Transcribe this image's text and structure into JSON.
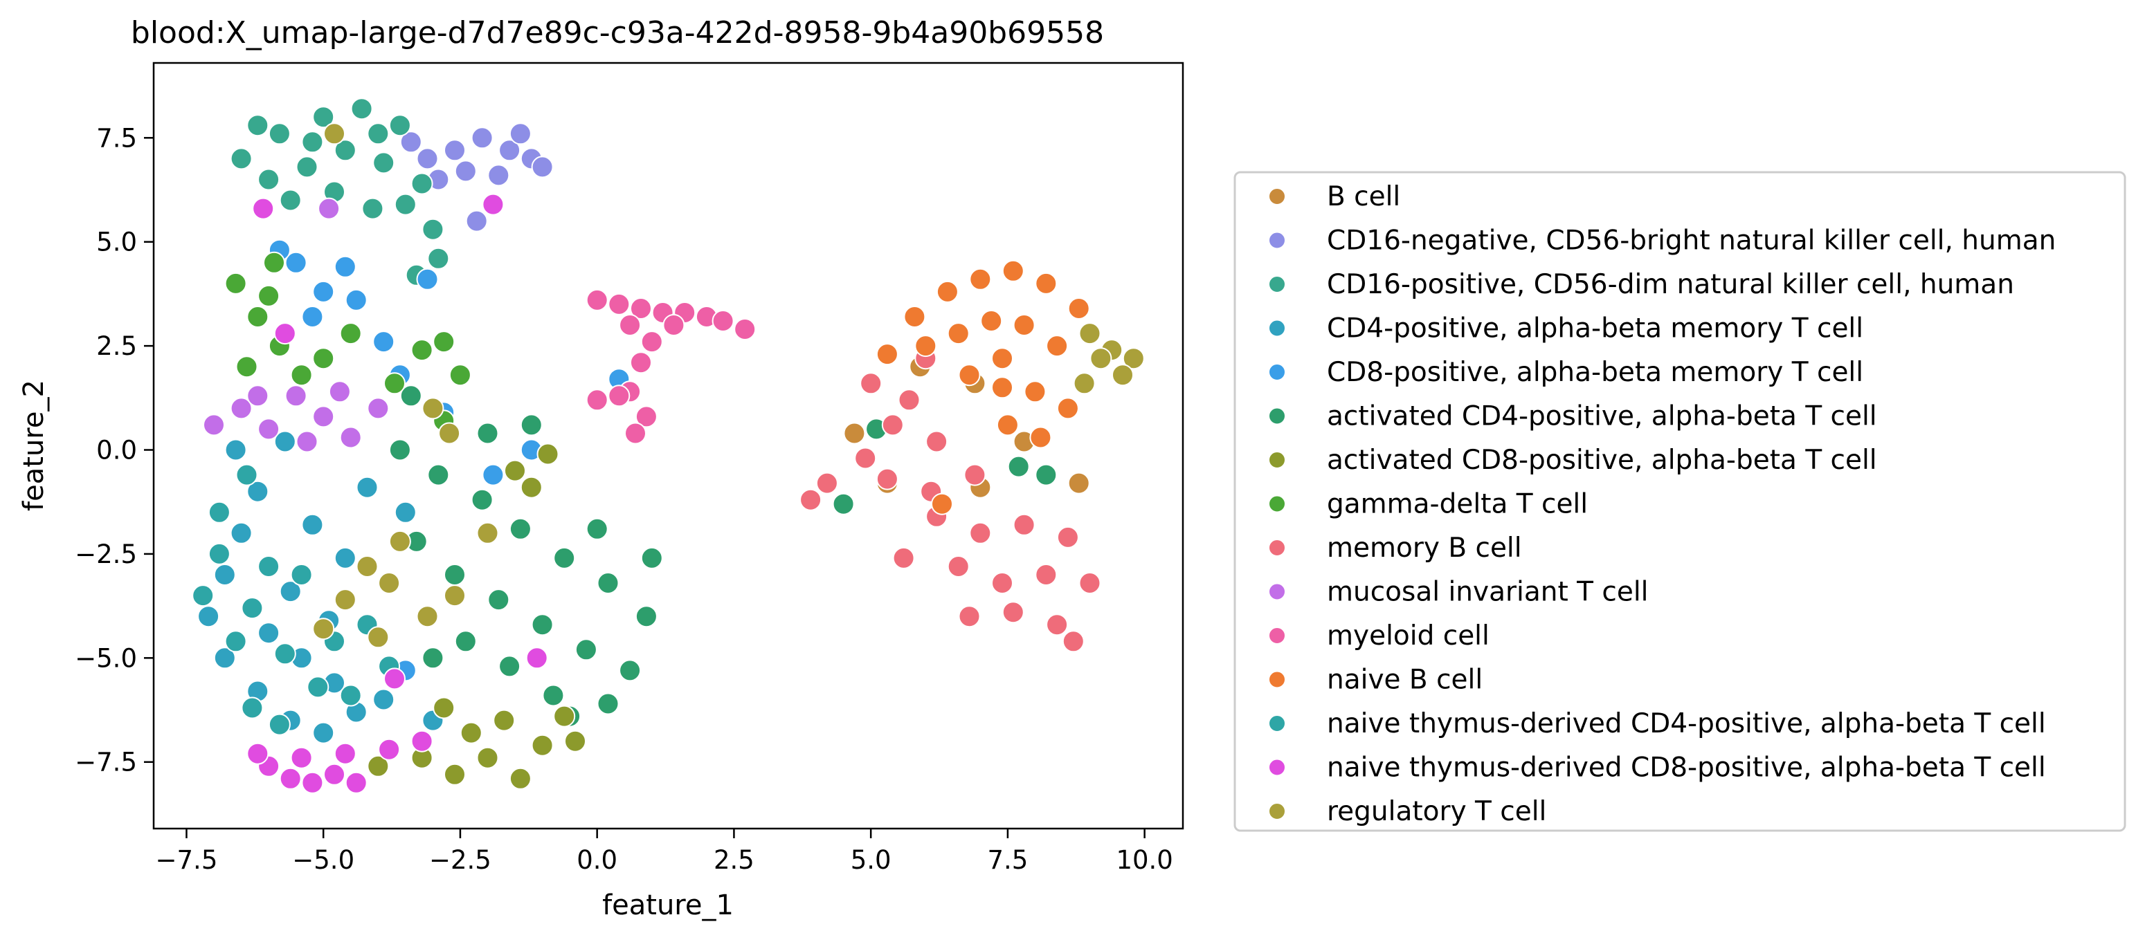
{
  "chart_data": {
    "type": "scatter",
    "title": "blood:X_umap-large-d7d7e89c-c93a-422d-8958-9b4a90b69558",
    "xlabel": "feature_1",
    "ylabel": "feature_2",
    "xlim": [
      -8.1,
      10.7
    ],
    "ylim": [
      -9.1,
      9.3
    ],
    "x_ticks": [
      -7.5,
      -5.0,
      -2.5,
      0.0,
      2.5,
      5.0,
      7.5,
      10.0
    ],
    "x_tick_labels": [
      "−7.5",
      "−5.0",
      "−2.5",
      "0.0",
      "2.5",
      "5.0",
      "7.5",
      "10.0"
    ],
    "y_ticks": [
      -7.5,
      -5.0,
      -2.5,
      0.0,
      2.5,
      5.0,
      7.5
    ],
    "y_tick_labels": [
      "−7.5",
      "−5.0",
      "−2.5",
      "0.0",
      "2.5",
      "5.0",
      "7.5"
    ],
    "grid": false,
    "legend_position": "outside-right",
    "series": [
      {
        "name": "B cell",
        "color": "#c98b3b",
        "points": [
          [
            4.7,
            0.4
          ],
          [
            5.3,
            -0.8
          ],
          [
            7.0,
            -0.9
          ],
          [
            7.8,
            0.2
          ],
          [
            8.8,
            -0.8
          ],
          [
            6.9,
            1.6
          ],
          [
            5.9,
            2.0
          ]
        ]
      },
      {
        "name": "CD16-negative, CD56-bright natural killer cell, human",
        "color": "#8d8ee6",
        "points": [
          [
            -3.1,
            7.0
          ],
          [
            -2.6,
            7.2
          ],
          [
            -2.1,
            7.5
          ],
          [
            -1.6,
            7.2
          ],
          [
            -1.2,
            7.0
          ],
          [
            -2.4,
            6.7
          ],
          [
            -1.8,
            6.6
          ],
          [
            -1.4,
            7.6
          ],
          [
            -2.9,
            6.5
          ],
          [
            -2.2,
            5.5
          ],
          [
            -3.4,
            7.4
          ],
          [
            -1.0,
            6.8
          ]
        ]
      },
      {
        "name": "CD16-positive, CD56-dim natural killer cell, human",
        "color": "#38a88e",
        "points": [
          [
            -6.5,
            7.0
          ],
          [
            -5.8,
            7.6
          ],
          [
            -5.0,
            8.0
          ],
          [
            -4.3,
            8.2
          ],
          [
            -3.6,
            7.8
          ],
          [
            -6.0,
            6.5
          ],
          [
            -5.3,
            6.8
          ],
          [
            -4.6,
            7.2
          ],
          [
            -3.9,
            6.9
          ],
          [
            -3.2,
            6.4
          ],
          [
            -5.6,
            6.0
          ],
          [
            -4.8,
            6.2
          ],
          [
            -4.1,
            5.8
          ],
          [
            -3.5,
            5.9
          ],
          [
            -3.0,
            5.3
          ],
          [
            -2.9,
            4.6
          ],
          [
            -3.3,
            4.2
          ],
          [
            -6.2,
            7.8
          ],
          [
            -4.0,
            7.6
          ],
          [
            -5.2,
            7.4
          ]
        ]
      },
      {
        "name": "CD4-positive, alpha-beta memory T cell",
        "color": "#30a2c0",
        "points": [
          [
            -7.1,
            -4.0
          ],
          [
            -6.8,
            -3.0
          ],
          [
            -6.5,
            -2.0
          ],
          [
            -6.2,
            -1.0
          ],
          [
            -6.8,
            -5.0
          ],
          [
            -6.2,
            -5.8
          ],
          [
            -5.6,
            -6.5
          ],
          [
            -5.0,
            -6.8
          ],
          [
            -4.4,
            -6.3
          ],
          [
            -5.6,
            -3.4
          ],
          [
            -5.2,
            -1.8
          ],
          [
            -4.6,
            -2.6
          ],
          [
            -6.0,
            -4.4
          ],
          [
            -5.4,
            -5.0
          ],
          [
            -4.8,
            -5.6
          ],
          [
            -3.9,
            -6.0
          ],
          [
            -6.6,
            0.0
          ],
          [
            -5.7,
            0.2
          ],
          [
            -4.2,
            -0.9
          ],
          [
            -3.5,
            -1.5
          ],
          [
            -3.0,
            -6.5
          ],
          [
            -4.9,
            -4.1
          ]
        ]
      },
      {
        "name": "CD8-positive, alpha-beta memory T cell",
        "color": "#3a9ee8",
        "points": [
          [
            -5.5,
            4.5
          ],
          [
            -5.0,
            3.8
          ],
          [
            -4.6,
            4.4
          ],
          [
            -5.2,
            3.2
          ],
          [
            -4.4,
            3.6
          ],
          [
            -3.9,
            2.6
          ],
          [
            -3.6,
            1.8
          ],
          [
            -5.8,
            4.8
          ],
          [
            -3.1,
            4.1
          ],
          [
            -1.2,
            0.0
          ],
          [
            -1.9,
            -0.6
          ],
          [
            0.4,
            1.7
          ],
          [
            -3.5,
            -5.3
          ],
          [
            -2.8,
            0.9
          ]
        ]
      },
      {
        "name": "activated CD4-positive, alpha-beta T cell",
        "color": "#2d9e6c",
        "points": [
          [
            -3.6,
            0.0
          ],
          [
            -2.9,
            -0.6
          ],
          [
            -2.1,
            -1.2
          ],
          [
            -1.4,
            -1.9
          ],
          [
            -0.6,
            -2.6
          ],
          [
            0.2,
            -3.2
          ],
          [
            0.9,
            -4.0
          ],
          [
            -3.3,
            -2.2
          ],
          [
            -2.6,
            -3.0
          ],
          [
            -1.8,
            -3.6
          ],
          [
            -1.0,
            -4.2
          ],
          [
            -0.2,
            -4.8
          ],
          [
            0.6,
            -5.3
          ],
          [
            -2.4,
            -4.6
          ],
          [
            -1.6,
            -5.2
          ],
          [
            -0.8,
            -5.9
          ],
          [
            -3.0,
            -5.0
          ],
          [
            -1.2,
            0.6
          ],
          [
            -2.0,
            0.4
          ],
          [
            0.0,
            -1.9
          ],
          [
            -3.4,
            1.3
          ],
          [
            -0.5,
            -6.4
          ],
          [
            0.2,
            -6.1
          ],
          [
            1.0,
            -2.6
          ],
          [
            5.1,
            0.5
          ],
          [
            4.5,
            -1.3
          ],
          [
            7.7,
            -0.4
          ],
          [
            8.2,
            -0.6
          ]
        ]
      },
      {
        "name": "activated CD8-positive, alpha-beta T cell",
        "color": "#8c9a2c",
        "points": [
          [
            -2.6,
            -7.8
          ],
          [
            -2.0,
            -7.4
          ],
          [
            -1.4,
            -7.9
          ],
          [
            -2.3,
            -6.8
          ],
          [
            -1.7,
            -6.5
          ],
          [
            -1.0,
            -7.1
          ],
          [
            -0.6,
            -6.4
          ],
          [
            -2.8,
            -6.2
          ],
          [
            -3.2,
            -7.4
          ],
          [
            -1.2,
            -0.9
          ],
          [
            -0.9,
            -0.1
          ],
          [
            -1.5,
            -0.5
          ],
          [
            -0.4,
            -7.0
          ],
          [
            -4.0,
            -7.6
          ]
        ]
      },
      {
        "name": "gamma-delta T cell",
        "color": "#4aa836",
        "points": [
          [
            -6.6,
            4.0
          ],
          [
            -6.2,
            3.2
          ],
          [
            -5.8,
            2.5
          ],
          [
            -6.4,
            2.0
          ],
          [
            -5.4,
            1.8
          ],
          [
            -6.0,
            3.7
          ],
          [
            -5.0,
            2.2
          ],
          [
            -4.5,
            2.8
          ],
          [
            -3.7,
            1.6
          ],
          [
            -3.2,
            2.4
          ],
          [
            -2.8,
            2.6
          ],
          [
            -2.5,
            1.8
          ],
          [
            -2.8,
            0.7
          ],
          [
            -5.9,
            4.5
          ]
        ]
      },
      {
        "name": "memory B cell",
        "color": "#ef6c7a",
        "points": [
          [
            4.2,
            -0.8
          ],
          [
            4.9,
            -0.2
          ],
          [
            5.4,
            0.6
          ],
          [
            5.0,
            1.6
          ],
          [
            5.7,
            1.2
          ],
          [
            6.2,
            0.2
          ],
          [
            6.9,
            -0.6
          ],
          [
            6.1,
            -1.0
          ],
          [
            5.3,
            -0.7
          ],
          [
            6.2,
            -1.6
          ],
          [
            7.0,
            -2.0
          ],
          [
            7.8,
            -1.8
          ],
          [
            8.6,
            -2.1
          ],
          [
            6.6,
            -2.8
          ],
          [
            7.4,
            -3.2
          ],
          [
            8.2,
            -3.0
          ],
          [
            9.0,
            -3.2
          ],
          [
            7.6,
            -3.9
          ],
          [
            8.4,
            -4.2
          ],
          [
            8.7,
            -4.6
          ],
          [
            5.6,
            -2.6
          ],
          [
            6.0,
            2.2
          ],
          [
            3.9,
            -1.2
          ],
          [
            6.8,
            -4.0
          ]
        ]
      },
      {
        "name": "mucosal invariant T cell",
        "color": "#c26ee8",
        "points": [
          [
            -7.0,
            0.6
          ],
          [
            -6.5,
            1.0
          ],
          [
            -6.0,
            0.5
          ],
          [
            -5.5,
            1.3
          ],
          [
            -5.0,
            0.8
          ],
          [
            -4.5,
            0.3
          ],
          [
            -4.0,
            1.0
          ],
          [
            -4.7,
            1.4
          ],
          [
            -6.2,
            1.3
          ],
          [
            -5.3,
            0.2
          ],
          [
            -4.9,
            5.8
          ]
        ]
      },
      {
        "name": "myeloid cell",
        "color": "#ee5fa6",
        "points": [
          [
            0.0,
            3.6
          ],
          [
            0.4,
            3.5
          ],
          [
            0.8,
            3.4
          ],
          [
            1.2,
            3.3
          ],
          [
            1.6,
            3.3
          ],
          [
            2.0,
            3.2
          ],
          [
            2.3,
            3.1
          ],
          [
            0.6,
            3.0
          ],
          [
            1.0,
            2.6
          ],
          [
            0.8,
            2.1
          ],
          [
            0.6,
            1.4
          ],
          [
            0.4,
            1.3
          ],
          [
            2.7,
            2.9
          ],
          [
            0.0,
            1.2
          ],
          [
            0.9,
            0.8
          ],
          [
            0.7,
            0.4
          ],
          [
            1.4,
            3.0
          ]
        ]
      },
      {
        "name": "naive B cell",
        "color": "#ef7a30",
        "points": [
          [
            5.8,
            3.2
          ],
          [
            6.4,
            3.8
          ],
          [
            7.0,
            4.1
          ],
          [
            7.6,
            4.3
          ],
          [
            8.2,
            4.0
          ],
          [
            8.8,
            3.4
          ],
          [
            6.0,
            2.5
          ],
          [
            6.6,
            2.8
          ],
          [
            7.2,
            3.1
          ],
          [
            7.8,
            3.0
          ],
          [
            8.4,
            2.5
          ],
          [
            6.8,
            1.8
          ],
          [
            7.4,
            1.5
          ],
          [
            8.0,
            1.4
          ],
          [
            8.6,
            1.0
          ],
          [
            7.5,
            0.6
          ],
          [
            8.1,
            0.3
          ],
          [
            5.3,
            2.3
          ],
          [
            6.3,
            -1.3
          ],
          [
            7.4,
            2.2
          ]
        ]
      },
      {
        "name": "naive thymus-derived CD4-positive, alpha-beta T cell",
        "color": "#2ea6a6",
        "points": [
          [
            -7.2,
            -3.5
          ],
          [
            -6.9,
            -2.5
          ],
          [
            -6.6,
            -4.6
          ],
          [
            -6.3,
            -3.8
          ],
          [
            -6.0,
            -2.8
          ],
          [
            -5.7,
            -4.9
          ],
          [
            -5.4,
            -3.0
          ],
          [
            -5.1,
            -5.7
          ],
          [
            -4.8,
            -4.6
          ],
          [
            -4.5,
            -5.9
          ],
          [
            -6.3,
            -6.2
          ],
          [
            -5.8,
            -6.6
          ],
          [
            -4.2,
            -4.2
          ],
          [
            -3.8,
            -5.2
          ],
          [
            -6.9,
            -1.5
          ],
          [
            -6.4,
            -0.6
          ]
        ]
      },
      {
        "name": "naive thymus-derived CD8-positive, alpha-beta T cell",
        "color": "#e04ce0",
        "points": [
          [
            -6.0,
            -7.6
          ],
          [
            -5.6,
            -7.9
          ],
          [
            -5.2,
            -8.0
          ],
          [
            -4.8,
            -7.8
          ],
          [
            -4.4,
            -8.0
          ],
          [
            -5.4,
            -7.4
          ],
          [
            -4.6,
            -7.3
          ],
          [
            -6.2,
            -7.3
          ],
          [
            -3.8,
            -7.2
          ],
          [
            -3.2,
            -7.0
          ],
          [
            -1.9,
            5.9
          ],
          [
            -3.7,
            -5.5
          ],
          [
            -1.1,
            -5.0
          ],
          [
            -6.1,
            5.8
          ],
          [
            -5.7,
            2.8
          ]
        ]
      },
      {
        "name": "regulatory T cell",
        "color": "#aaa03a",
        "points": [
          [
            9.0,
            2.8
          ],
          [
            9.4,
            2.4
          ],
          [
            9.8,
            2.2
          ],
          [
            9.6,
            1.8
          ],
          [
            9.2,
            2.2
          ],
          [
            8.9,
            1.6
          ],
          [
            -4.6,
            -3.6
          ],
          [
            -3.8,
            -3.2
          ],
          [
            -3.1,
            -4.0
          ],
          [
            -4.2,
            -2.8
          ],
          [
            -4.0,
            -4.5
          ],
          [
            -3.6,
            -2.2
          ],
          [
            -5.0,
            -4.3
          ],
          [
            -2.6,
            -3.5
          ],
          [
            -4.8,
            7.6
          ],
          [
            -2.7,
            0.4
          ],
          [
            -3.0,
            1.0
          ],
          [
            -2.0,
            -2.0
          ]
        ]
      }
    ]
  }
}
